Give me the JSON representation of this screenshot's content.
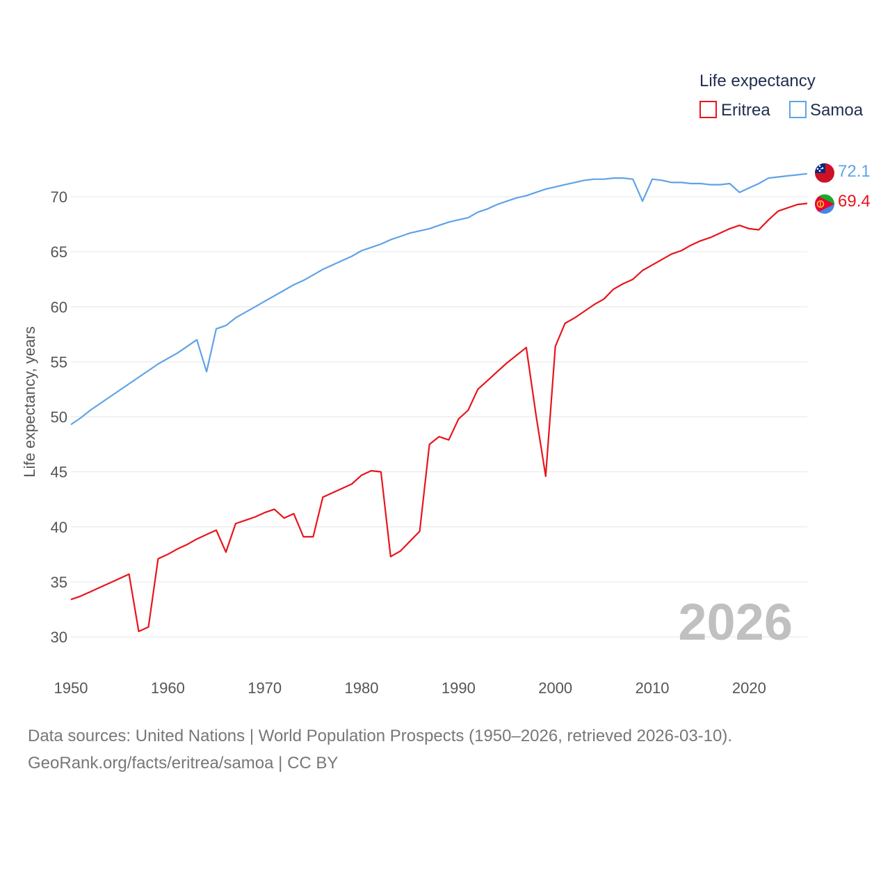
{
  "chart_data": {
    "type": "line",
    "legend_title": "Life expectancy",
    "ylabel": "Life expectancy, years",
    "xlabel": "",
    "xlim": [
      1950,
      2026
    ],
    "ylim": [
      30,
      72.5
    ],
    "xticks": [
      1950,
      1960,
      1970,
      1980,
      1990,
      2000,
      2010,
      2020
    ],
    "yticks": [
      30,
      35,
      40,
      45,
      50,
      55,
      60,
      65,
      70
    ],
    "grid": true,
    "legend_position": "top-right",
    "year_watermark": "2026",
    "series": [
      {
        "name": "Eritrea",
        "color": "#e8141c",
        "end_label": "69.4",
        "flag": "eritrea-flag-icon",
        "x": [
          1950,
          1951,
          1952,
          1953,
          1954,
          1955,
          1956,
          1957,
          1958,
          1959,
          1960,
          1961,
          1962,
          1963,
          1964,
          1965,
          1966,
          1967,
          1968,
          1969,
          1970,
          1971,
          1972,
          1973,
          1974,
          1975,
          1976,
          1977,
          1978,
          1979,
          1980,
          1981,
          1982,
          1983,
          1984,
          1985,
          1986,
          1987,
          1988,
          1989,
          1990,
          1991,
          1992,
          1993,
          1994,
          1995,
          1996,
          1997,
          1998,
          1999,
          2000,
          2001,
          2002,
          2003,
          2004,
          2005,
          2006,
          2007,
          2008,
          2009,
          2010,
          2011,
          2012,
          2013,
          2014,
          2015,
          2016,
          2017,
          2018,
          2019,
          2020,
          2021,
          2022,
          2023,
          2024,
          2025,
          2026
        ],
        "values": [
          33.4,
          33.7,
          34.1,
          34.5,
          34.9,
          35.3,
          35.7,
          30.5,
          30.9,
          37.1,
          37.5,
          38.0,
          38.4,
          38.9,
          39.3,
          39.7,
          37.7,
          40.3,
          40.6,
          40.9,
          41.3,
          41.6,
          40.8,
          41.2,
          39.1,
          39.1,
          42.7,
          43.1,
          43.5,
          43.9,
          44.7,
          45.1,
          45.0,
          37.3,
          37.8,
          38.7,
          39.6,
          47.5,
          48.2,
          47.9,
          49.8,
          50.6,
          52.5,
          53.3,
          54.1,
          54.9,
          55.6,
          56.3,
          50.2,
          44.6,
          56.4,
          58.5,
          59.0,
          59.6,
          60.2,
          60.7,
          61.6,
          62.1,
          62.5,
          63.3,
          63.8,
          64.3,
          64.8,
          65.1,
          65.6,
          66.0,
          66.3,
          66.7,
          67.1,
          67.4,
          67.1,
          67.0,
          67.9,
          68.7,
          69.0,
          69.3,
          69.4
        ]
      },
      {
        "name": "Samoa",
        "color": "#5fa3e6",
        "end_label": "72.1",
        "flag": "samoa-flag-icon",
        "x": [
          1950,
          1951,
          1952,
          1953,
          1954,
          1955,
          1956,
          1957,
          1958,
          1959,
          1960,
          1961,
          1962,
          1963,
          1964,
          1965,
          1966,
          1967,
          1968,
          1969,
          1970,
          1971,
          1972,
          1973,
          1974,
          1975,
          1976,
          1977,
          1978,
          1979,
          1980,
          1981,
          1982,
          1983,
          1984,
          1985,
          1986,
          1987,
          1988,
          1989,
          1990,
          1991,
          1992,
          1993,
          1994,
          1995,
          1996,
          1997,
          1998,
          1999,
          2000,
          2001,
          2002,
          2003,
          2004,
          2005,
          2006,
          2007,
          2008,
          2009,
          2010,
          2011,
          2012,
          2013,
          2014,
          2015,
          2016,
          2017,
          2018,
          2019,
          2020,
          2021,
          2022,
          2023,
          2024,
          2025,
          2026
        ],
        "values": [
          49.3,
          49.9,
          50.6,
          51.2,
          51.8,
          52.4,
          53.0,
          53.6,
          54.2,
          54.8,
          55.3,
          55.8,
          56.4,
          57.0,
          54.1,
          58.0,
          58.3,
          59.0,
          59.5,
          60.0,
          60.5,
          61.0,
          61.5,
          62.0,
          62.4,
          62.9,
          63.4,
          63.8,
          64.2,
          64.6,
          65.1,
          65.4,
          65.7,
          66.1,
          66.4,
          66.7,
          66.9,
          67.1,
          67.4,
          67.7,
          67.9,
          68.1,
          68.6,
          68.9,
          69.3,
          69.6,
          69.9,
          70.1,
          70.4,
          70.7,
          70.9,
          71.1,
          71.3,
          71.5,
          71.6,
          71.6,
          71.7,
          71.7,
          71.6,
          69.6,
          71.6,
          71.5,
          71.3,
          71.3,
          71.2,
          71.2,
          71.1,
          71.1,
          71.2,
          70.4,
          70.8,
          71.2,
          71.7,
          71.8,
          71.9,
          72.0,
          72.1
        ]
      }
    ]
  },
  "footer": {
    "line1": "Data sources: United Nations | World Population Prospects (1950–2026, retrieved 2026-03-10).",
    "line2": "GeoRank.org/facts/eritrea/samoa | CC BY"
  }
}
